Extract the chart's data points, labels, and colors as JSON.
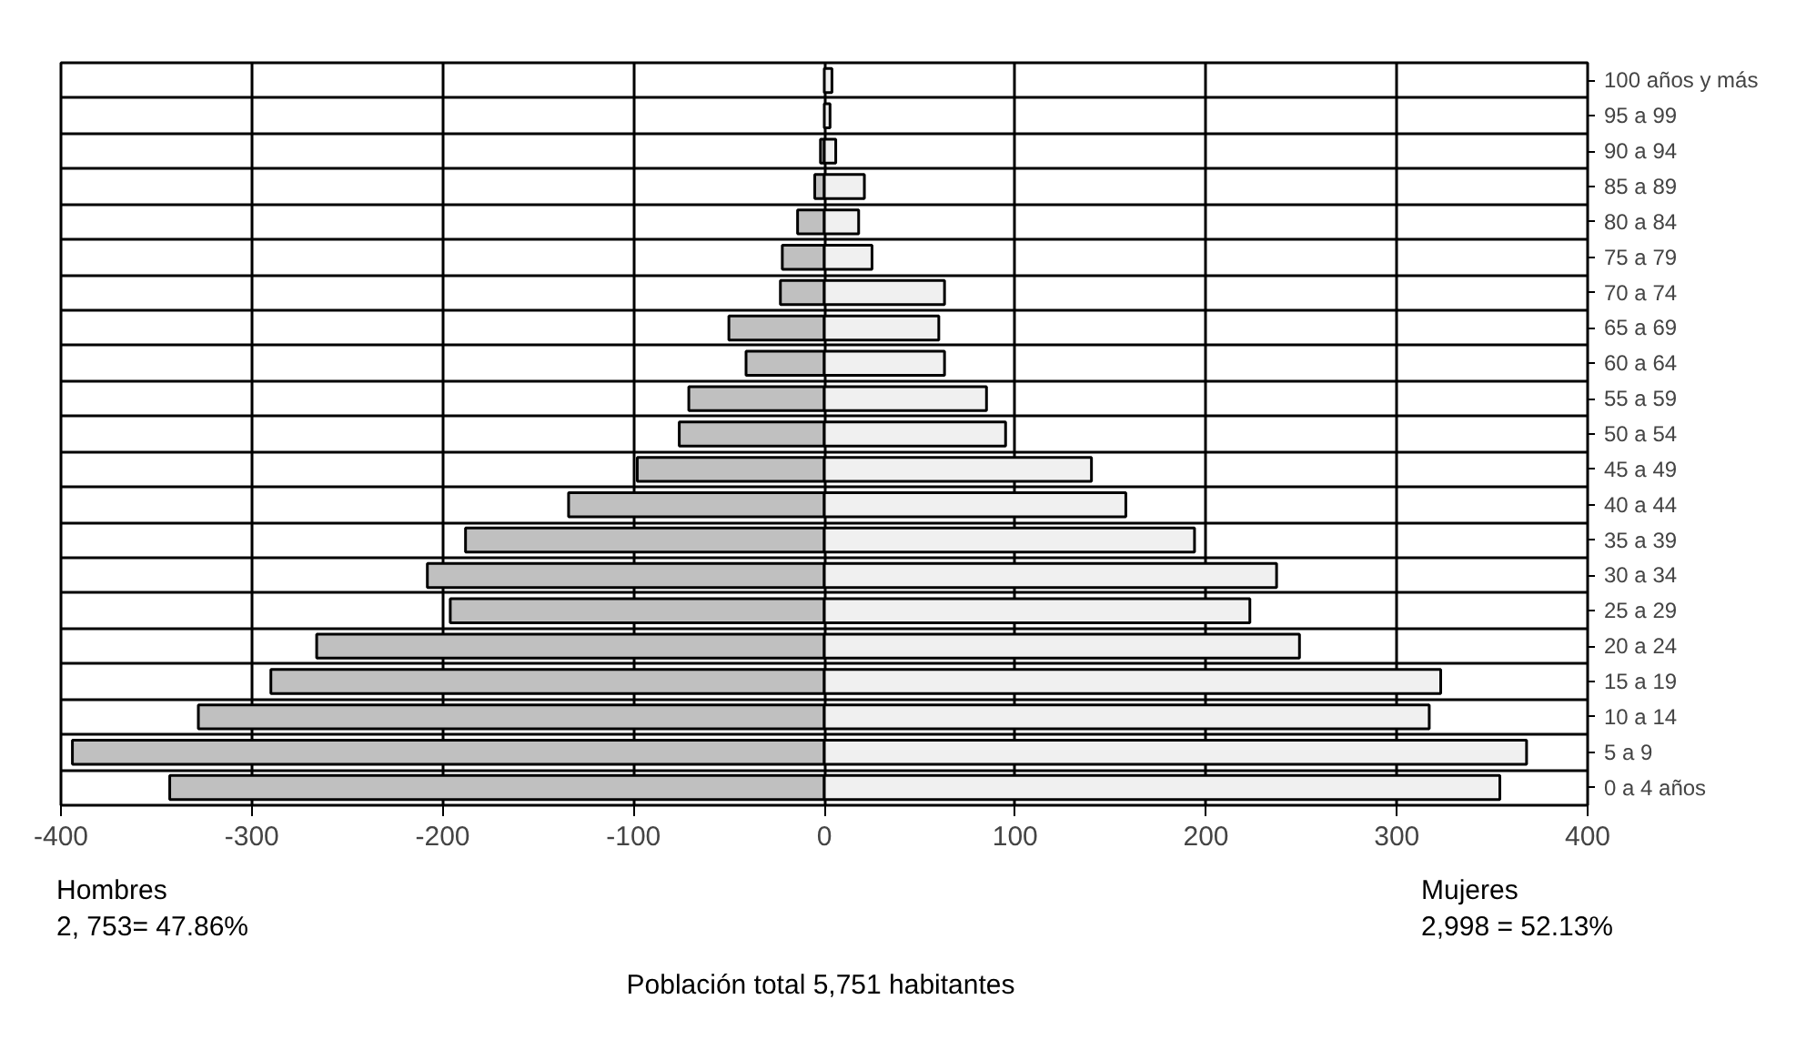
{
  "chart_data": {
    "type": "bar",
    "orientation": "horizontal",
    "categories": [
      "100 años y más",
      "95 a 99",
      "90 a 94",
      "85 a 89",
      "80 a 84",
      "75 a 79",
      "70 a 74",
      "65 a 69",
      "60 a 64",
      "55 a 59",
      "50 a 54",
      "45 a 49",
      "40 a 44",
      "35 a 39",
      "30 a 34",
      "25 a 29",
      "20 a 24",
      "15 a 19",
      "10 a 14",
      "5 a 9",
      "0 a 4 años"
    ],
    "series": [
      {
        "color": "#c0c0c0",
        "values": [
          0,
          0,
          -2,
          -5,
          -14,
          -22,
          -23,
          -50,
          -41,
          -71,
          -76,
          -98,
          -134,
          -188,
          -208,
          -196,
          -266,
          -290,
          -328,
          -394,
          -343
        ]
      },
      {
        "color": "#f0f0f0",
        "values": [
          4,
          3,
          6,
          21,
          18,
          25,
          63,
          60,
          63,
          85,
          95,
          140,
          158,
          194,
          237,
          223,
          249,
          323,
          317,
          368,
          354
        ]
      }
    ],
    "xlim": [
      -400,
      400
    ],
    "xticks": [
      -400,
      -300,
      -200,
      -100,
      0,
      100,
      200,
      300,
      400
    ],
    "grid": true,
    "stacked": true,
    "annotations": [
      "Hombres\n2, 753= 47.86%",
      "Mujeres\n2,998 = 52.13%",
      "Población total 5,751 habitantes"
    ]
  }
}
